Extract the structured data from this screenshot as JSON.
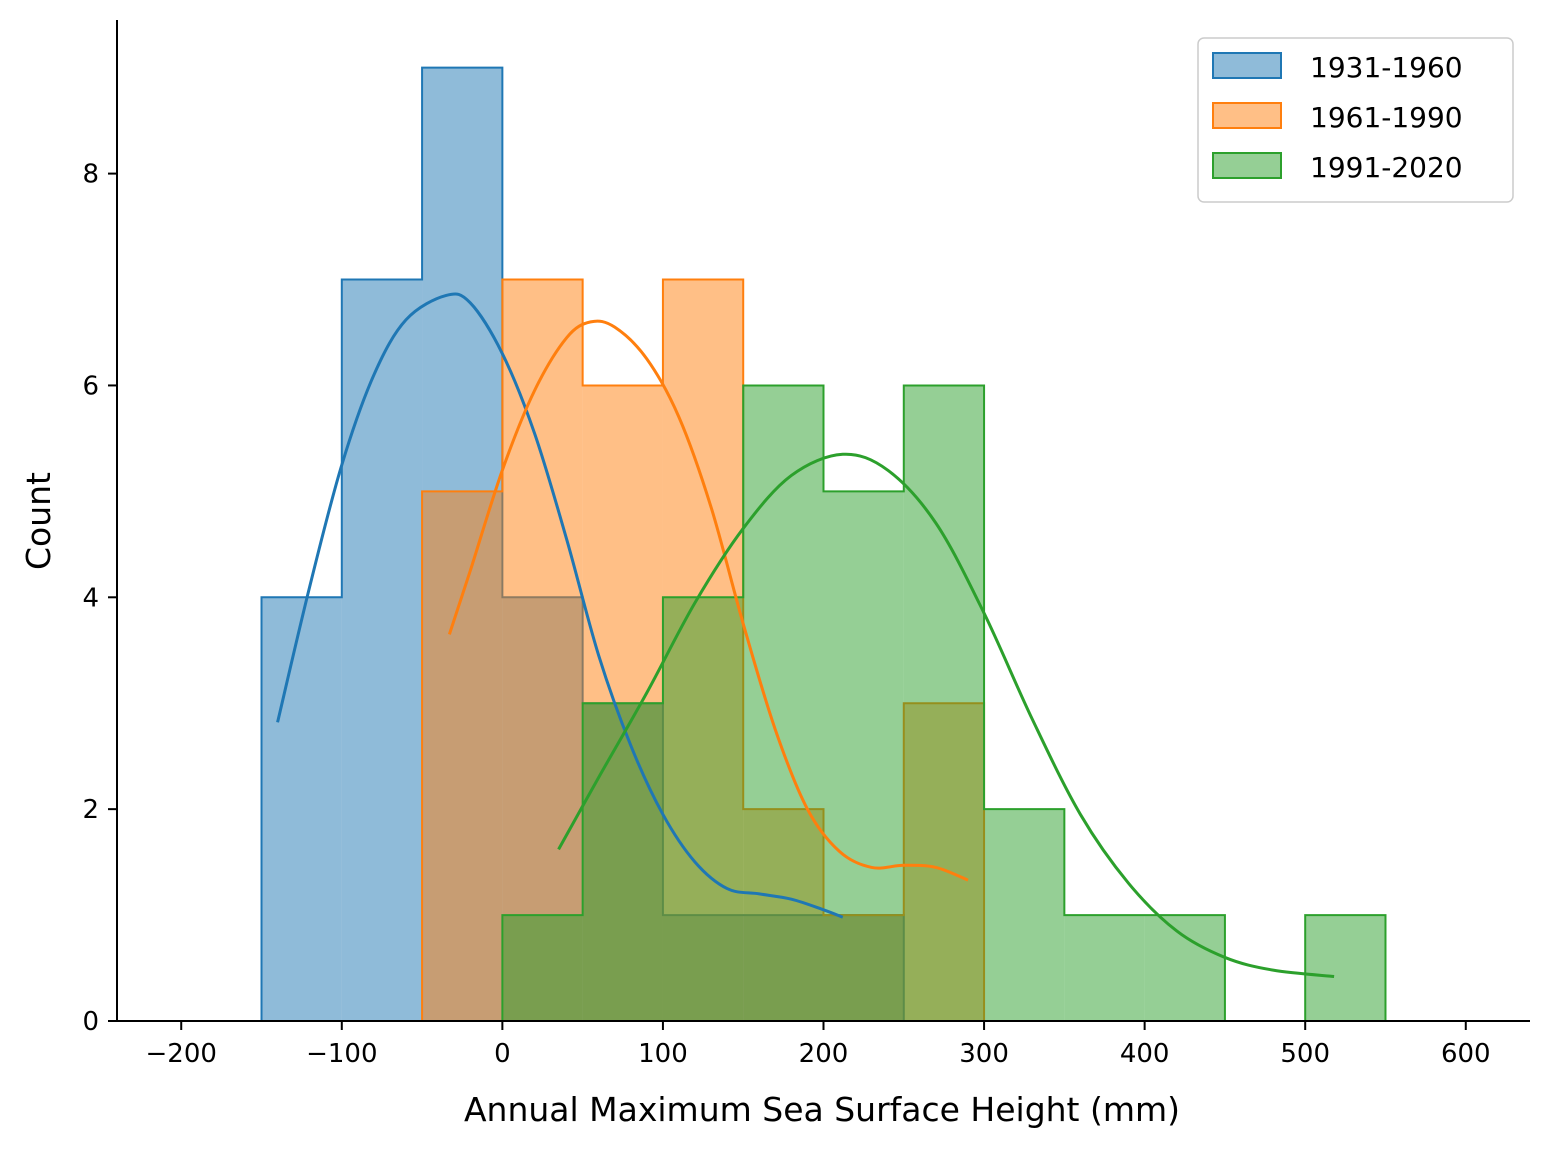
{
  "chart_data": {
    "type": "histogram",
    "xlabel": "Annual Maximum Sea Surface Height (mm)",
    "ylabel": "Count",
    "xlim": [
      -240,
      640
    ],
    "ylim": [
      0,
      9.45
    ],
    "xticks": [
      -200,
      -100,
      0,
      100,
      200,
      300,
      400,
      500,
      600
    ],
    "xtick_labels": [
      "−200",
      "−100",
      "0",
      "100",
      "200",
      "300",
      "400",
      "500",
      "600"
    ],
    "yticks": [
      0,
      2,
      4,
      6,
      8
    ],
    "ytick_labels": [
      "0",
      "2",
      "4",
      "6",
      "8"
    ],
    "bin_width": 50,
    "legend": {
      "location": "upper right",
      "entries": [
        "1931-1960",
        "1961-1990",
        "1991-2020"
      ]
    },
    "series": [
      {
        "name": "1931-1960",
        "color": "#1f77b4",
        "bins": [
          {
            "start": -150,
            "count": 4
          },
          {
            "start": -100,
            "count": 7
          },
          {
            "start": -50,
            "count": 9
          },
          {
            "start": 0,
            "count": 4
          },
          {
            "start": 50,
            "count": 3
          },
          {
            "start": 100,
            "count": 1
          },
          {
            "start": 150,
            "count": 1
          },
          {
            "start": 200,
            "count": 1
          }
        ],
        "kde": [
          [
            -140,
            2.82
          ],
          [
            -120,
            4.1
          ],
          [
            -100,
            5.25
          ],
          [
            -80,
            6.1
          ],
          [
            -60,
            6.62
          ],
          [
            -35,
            6.85
          ],
          [
            -20,
            6.78
          ],
          [
            0,
            6.3
          ],
          [
            20,
            5.55
          ],
          [
            40,
            4.55
          ],
          [
            60,
            3.45
          ],
          [
            80,
            2.6
          ],
          [
            100,
            1.95
          ],
          [
            120,
            1.5
          ],
          [
            140,
            1.25
          ],
          [
            160,
            1.2
          ],
          [
            180,
            1.15
          ],
          [
            200,
            1.05
          ],
          [
            212,
            0.98
          ]
        ]
      },
      {
        "name": "1961-1990",
        "color": "#ff7f0e",
        "bins": [
          {
            "start": -50,
            "count": 5
          },
          {
            "start": 0,
            "count": 7
          },
          {
            "start": 50,
            "count": 6
          },
          {
            "start": 100,
            "count": 7
          },
          {
            "start": 150,
            "count": 2
          },
          {
            "start": 200,
            "count": 1
          },
          {
            "start": 250,
            "count": 3
          }
        ],
        "kde": [
          [
            -33,
            3.65
          ],
          [
            -20,
            4.25
          ],
          [
            0,
            5.2
          ],
          [
            20,
            5.95
          ],
          [
            40,
            6.45
          ],
          [
            55,
            6.6
          ],
          [
            70,
            6.55
          ],
          [
            90,
            6.25
          ],
          [
            110,
            5.7
          ],
          [
            130,
            4.85
          ],
          [
            150,
            3.75
          ],
          [
            170,
            2.75
          ],
          [
            190,
            2.0
          ],
          [
            210,
            1.6
          ],
          [
            230,
            1.45
          ],
          [
            250,
            1.47
          ],
          [
            270,
            1.45
          ],
          [
            290,
            1.33
          ]
        ]
      },
      {
        "name": "1991-2020",
        "color": "#2ca02c",
        "bins": [
          {
            "start": 0,
            "count": 1
          },
          {
            "start": 50,
            "count": 3
          },
          {
            "start": 100,
            "count": 4
          },
          {
            "start": 150,
            "count": 6
          },
          {
            "start": 200,
            "count": 5
          },
          {
            "start": 250,
            "count": 6
          },
          {
            "start": 300,
            "count": 2
          },
          {
            "start": 350,
            "count": 1
          },
          {
            "start": 400,
            "count": 1
          },
          {
            "start": 450,
            "count": 0
          },
          {
            "start": 500,
            "count": 1
          }
        ],
        "kde": [
          [
            35,
            1.62
          ],
          [
            60,
            2.3
          ],
          [
            90,
            3.1
          ],
          [
            120,
            3.95
          ],
          [
            150,
            4.65
          ],
          [
            180,
            5.15
          ],
          [
            212,
            5.35
          ],
          [
            240,
            5.2
          ],
          [
            270,
            4.7
          ],
          [
            300,
            3.85
          ],
          [
            330,
            2.85
          ],
          [
            360,
            1.95
          ],
          [
            390,
            1.3
          ],
          [
            420,
            0.85
          ],
          [
            450,
            0.6
          ],
          [
            480,
            0.48
          ],
          [
            518,
            0.42
          ]
        ]
      }
    ]
  }
}
